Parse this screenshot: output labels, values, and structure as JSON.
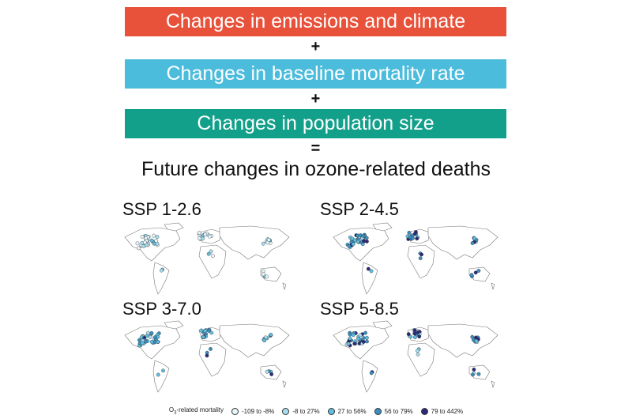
{
  "bars": [
    {
      "label": "Changes in emissions and climate",
      "color": "#e8513a"
    },
    {
      "label": "Changes in baseline mortality rate",
      "color": "#4cbcdc"
    },
    {
      "label": "Changes in population size",
      "color": "#13a08a"
    }
  ],
  "operators": [
    "+",
    "+",
    "="
  ],
  "result_label": "Future changes in ozone-related deaths",
  "panels": [
    {
      "title": "SSP 1-2.6",
      "intensity": 0
    },
    {
      "title": "SSP 2-4.5",
      "intensity": 2
    },
    {
      "title": "SSP 3-7.0",
      "intensity": 1
    },
    {
      "title": "SSP 5-8.5",
      "intensity": 2
    }
  ],
  "legend": {
    "title_prefix": "O",
    "title_sub": "3",
    "title_suffix": "-related mortality",
    "items": [
      {
        "label": "-109 to -8%",
        "color": "#e6f6fb"
      },
      {
        "label": "-8 to 27%",
        "color": "#a7dff0"
      },
      {
        "label": "27 to 56%",
        "color": "#5fbfe0"
      },
      {
        "label": "56 to 79%",
        "color": "#3a8fc0"
      },
      {
        "label": "79 to 442%",
        "color": "#2b2a7a"
      }
    ]
  }
}
